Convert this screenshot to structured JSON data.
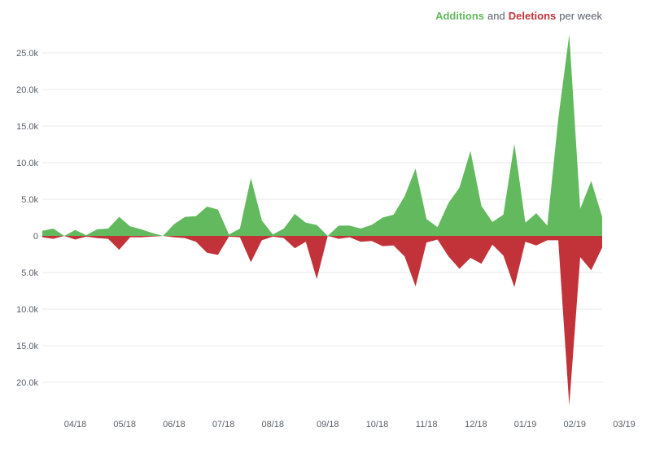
{
  "chart_data": {
    "type": "area",
    "title": "",
    "legend": {
      "placement": "top-right",
      "additions_label": "Additions",
      "connector": "and",
      "deletions_label": "Deletions",
      "suffix": "per week"
    },
    "colors": {
      "additions": "#63b95e",
      "deletions": "#c23339",
      "grid": "#e9e9e9",
      "text": "#586069"
    },
    "grid": true,
    "ylim": [
      -23500,
      28000
    ],
    "y_ticks": [
      {
        "value": 25000,
        "label": "25.0k"
      },
      {
        "value": 20000,
        "label": "20.0k"
      },
      {
        "value": 15000,
        "label": "15.0k"
      },
      {
        "value": 10000,
        "label": "10.0k"
      },
      {
        "value": 5000,
        "label": "5.0k"
      },
      {
        "value": 0,
        "label": "0"
      },
      {
        "value": -5000,
        "label": "5.0k"
      },
      {
        "value": -10000,
        "label": "10.0k"
      },
      {
        "value": -15000,
        "label": "15.0k"
      },
      {
        "value": -20000,
        "label": "20.0k"
      }
    ],
    "x_ticks": [
      {
        "index": 3,
        "label": "04/18"
      },
      {
        "index": 7.5,
        "label": "05/18"
      },
      {
        "index": 12,
        "label": "06/18"
      },
      {
        "index": 16.5,
        "label": "07/18"
      },
      {
        "index": 21,
        "label": "08/18"
      },
      {
        "index": 26,
        "label": "09/18"
      },
      {
        "index": 30.5,
        "label": "10/18"
      },
      {
        "index": 35,
        "label": "11/18"
      },
      {
        "index": 39.5,
        "label": "12/18"
      },
      {
        "index": 44,
        "label": "01/19"
      },
      {
        "index": 48.5,
        "label": "02/19"
      },
      {
        "index": 53,
        "label": "03/19"
      }
    ],
    "series": [
      {
        "name": "Additions",
        "values": [
          700,
          1000,
          0,
          800,
          100,
          900,
          1000,
          2600,
          1300,
          900,
          400,
          0,
          1600,
          2600,
          2700,
          4000,
          3600,
          200,
          1000,
          7900,
          2100,
          200,
          1000,
          3000,
          1800,
          1500,
          0,
          1400,
          1400,
          1000,
          1500,
          2500,
          2900,
          5400,
          9200,
          2300,
          1200,
          4500,
          6600,
          11600,
          4100,
          1900,
          2900,
          12600,
          1800,
          3100,
          1400,
          16000,
          27500,
          3700,
          7500,
          2600
        ]
      },
      {
        "name": "Deletions",
        "values": [
          -200,
          -400,
          0,
          -500,
          -100,
          -300,
          -400,
          -1900,
          -200,
          -200,
          -100,
          0,
          -200,
          -300,
          -800,
          -2300,
          -2600,
          -100,
          -200,
          -3600,
          -600,
          -100,
          -300,
          -1700,
          -800,
          -5900,
          0,
          -400,
          -200,
          -800,
          -700,
          -1400,
          -1300,
          -2800,
          -6900,
          -900,
          -500,
          -2800,
          -4500,
          -3000,
          -3800,
          -1200,
          -2700,
          -7000,
          -800,
          -1300,
          -600,
          -600,
          -23200,
          -2900,
          -4700,
          -1600
        ]
      }
    ]
  }
}
